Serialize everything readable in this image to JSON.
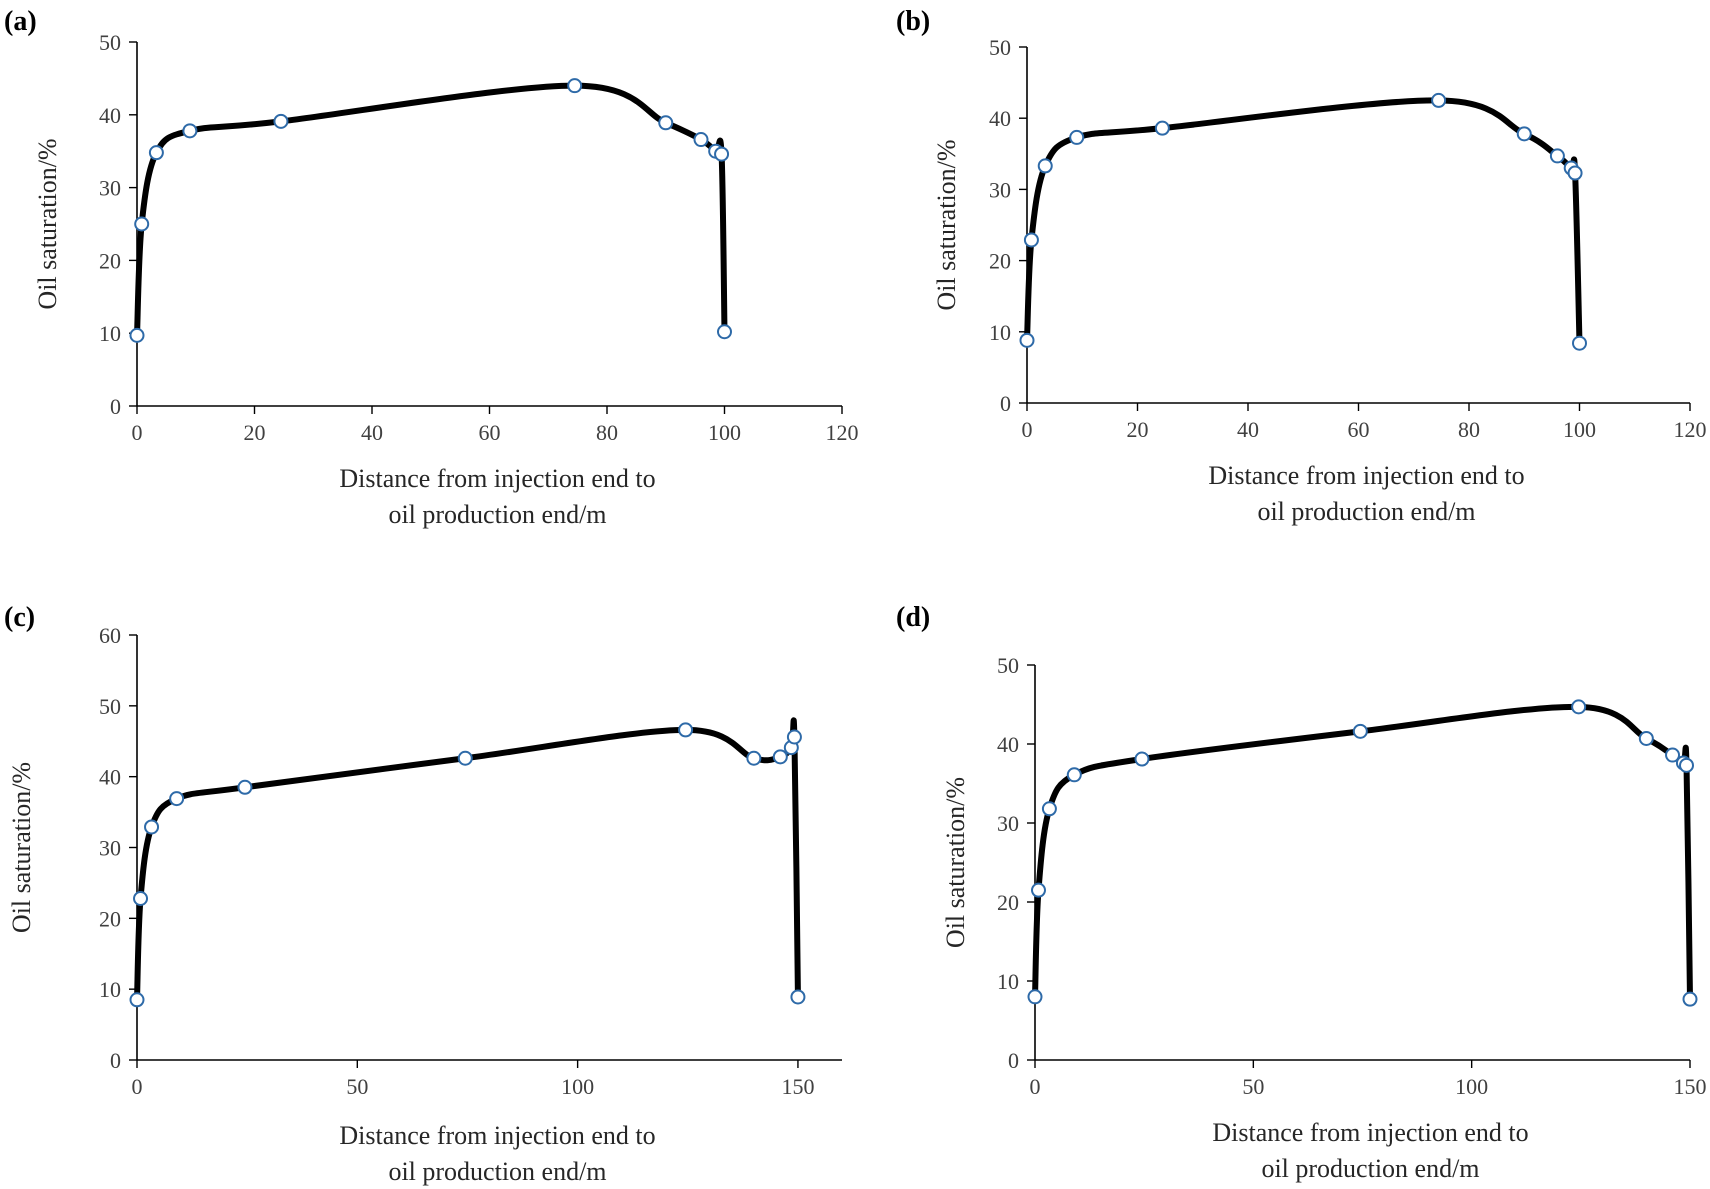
{
  "figure": {
    "description_panels": [
      "a",
      "b",
      "c",
      "d"
    ]
  },
  "chart_data": [
    {
      "panel": "(a)",
      "type": "line",
      "ylabel": "Oil saturation/%",
      "xlabel_line1": "Distance  from injection end to",
      "xlabel_line2": "oil production end/m",
      "xlim": [
        0,
        120
      ],
      "ylim": [
        0,
        50
      ],
      "xticks": [
        0,
        20,
        40,
        60,
        80,
        100,
        120
      ],
      "yticks": [
        0,
        10,
        20,
        30,
        40,
        50
      ],
      "series": [
        {
          "name": "oil saturation",
          "x": [
            0,
            0.8,
            3.3,
            9,
            24.5,
            74.5,
            90,
            96,
            98.5,
            99.5,
            100
          ],
          "y": [
            9.7,
            25,
            34.8,
            37.8,
            39.1,
            44,
            38.9,
            36.6,
            35,
            34.6,
            10.2
          ]
        }
      ],
      "marker": "open circle"
    },
    {
      "panel": "(b)",
      "type": "line",
      "ylabel": "Oil saturation/%",
      "xlabel_line1": "Distance  from injection end to",
      "xlabel_line2": "oil production end/m",
      "xlim": [
        0,
        120
      ],
      "ylim": [
        0,
        50
      ],
      "xticks": [
        0,
        20,
        40,
        60,
        80,
        100,
        120
      ],
      "yticks": [
        0,
        10,
        20,
        30,
        40,
        50
      ],
      "series": [
        {
          "name": "oil saturation",
          "x": [
            0,
            0.8,
            3.3,
            9,
            24.5,
            74.5,
            90,
            96,
            98.5,
            99.2,
            100
          ],
          "y": [
            8.8,
            22.9,
            33.3,
            37.3,
            38.6,
            42.5,
            37.8,
            34.7,
            33,
            32.3,
            8.4
          ]
        }
      ],
      "marker": "open circle"
    },
    {
      "panel": "(c)",
      "type": "line",
      "ylabel": "Oil saturation/%",
      "xlabel_line1": "Distance  from injection end to",
      "xlabel_line2": "oil production end/m",
      "xlim": [
        0,
        160
      ],
      "ylim": [
        0,
        60
      ],
      "xticks": [
        0,
        50,
        100,
        150
      ],
      "yticks": [
        0,
        10,
        20,
        30,
        40,
        50,
        60
      ],
      "series": [
        {
          "name": "oil saturation",
          "x": [
            0,
            0.8,
            3.3,
            9,
            24.5,
            74.5,
            124.5,
            140,
            146,
            148.5,
            149.2,
            150
          ],
          "y": [
            8.5,
            22.8,
            32.9,
            36.9,
            38.5,
            42.6,
            46.6,
            42.6,
            42.8,
            44.1,
            45.6,
            8.9
          ]
        }
      ],
      "marker": "open circle"
    },
    {
      "panel": "(d)",
      "type": "line",
      "ylabel": "Oil saturation/%",
      "xlabel_line1": "Distance  from injection end to",
      "xlabel_line2": "oil production end/m",
      "xlim": [
        0,
        150
      ],
      "ylim": [
        0,
        50
      ],
      "xticks": [
        0,
        50,
        100,
        150
      ],
      "yticks": [
        0,
        10,
        20,
        30,
        40,
        50
      ],
      "series": [
        {
          "name": "oil saturation",
          "x": [
            0,
            0.8,
            3.3,
            9,
            24.5,
            74.5,
            124.5,
            140,
            146,
            148.5,
            149.2,
            150
          ],
          "y": [
            8,
            21.5,
            31.8,
            36.1,
            38.1,
            41.6,
            44.7,
            40.7,
            38.6,
            37.6,
            37.3,
            7.7
          ]
        }
      ],
      "marker": "open circle"
    }
  ]
}
